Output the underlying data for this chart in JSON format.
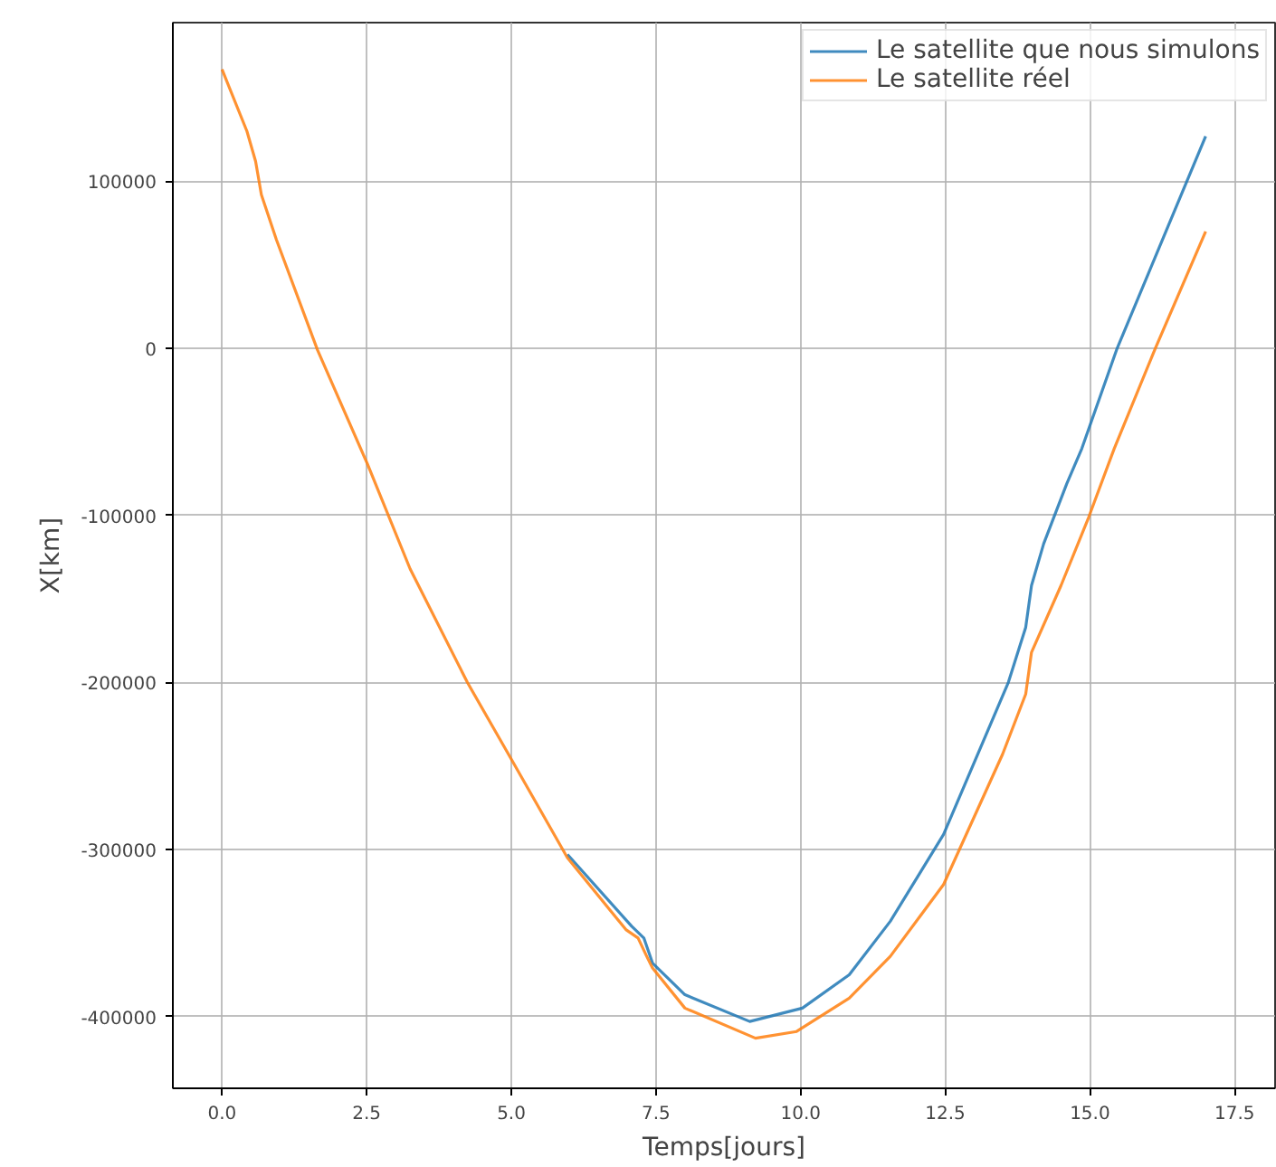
{
  "chart_data": {
    "type": "line",
    "xlabel": "Temps[jours]",
    "ylabel": "X[km]",
    "xlim": [
      -0.85,
      18.2
    ],
    "ylim": [
      -443000,
      195000
    ],
    "xticks": [
      {
        "value": 0,
        "label": "0.0"
      },
      {
        "value": 2.5,
        "label": "2.5"
      },
      {
        "value": 5,
        "label": "5.0"
      },
      {
        "value": 7.5,
        "label": "7.5"
      },
      {
        "value": 10,
        "label": "10.0"
      },
      {
        "value": 12.5,
        "label": "12.5"
      },
      {
        "value": 15,
        "label": "15.0"
      },
      {
        "value": 17.5,
        "label": "17.5"
      }
    ],
    "yticks": [
      -400000,
      -300000,
      -200000,
      -100000,
      0,
      100000
    ],
    "grid": true,
    "legend": "top right",
    "line_style": "solid",
    "series": [
      {
        "name": "Le satellite que nous simulons",
        "color": "#1f77b4",
        "x": [
          5.97,
          7.08,
          7.29,
          7.44,
          8.0,
          9.12,
          10.03,
          10.84,
          11.55,
          12.47,
          13.59,
          13.89,
          13.99,
          14.2,
          14.6,
          14.86,
          15.47,
          17.0
        ],
        "values": [
          -303000,
          -346000,
          -353000,
          -368000,
          -387000,
          -403000,
          -395000,
          -375000,
          -343000,
          -291000,
          -200000,
          -167000,
          -142000,
          -117000,
          -81000,
          -60000,
          0,
          127000
        ]
      },
      {
        "name": "Le satellite réel",
        "color": "#ff7f0e",
        "x": [
          0,
          0.43,
          0.58,
          0.68,
          0.94,
          1.65,
          2.51,
          3.25,
          4.24,
          5.0,
          5.97,
          6.98,
          7.19,
          7.34,
          7.44,
          8.0,
          9.22,
          9.93,
          10.84,
          11.55,
          12.47,
          13.49,
          13.89,
          13.99,
          14.5,
          14.98,
          15.42,
          16.13,
          17.0
        ],
        "values": [
          167000,
          130000,
          112000,
          92000,
          65000,
          -1000,
          -69000,
          -132000,
          -200000,
          -246000,
          -305000,
          -348000,
          -353000,
          -364000,
          -371000,
          -395000,
          -413000,
          -409000,
          -389000,
          -364000,
          -321000,
          -243000,
          -207000,
          -182000,
          -142000,
          -101000,
          -60000,
          0,
          70000
        ]
      }
    ]
  }
}
